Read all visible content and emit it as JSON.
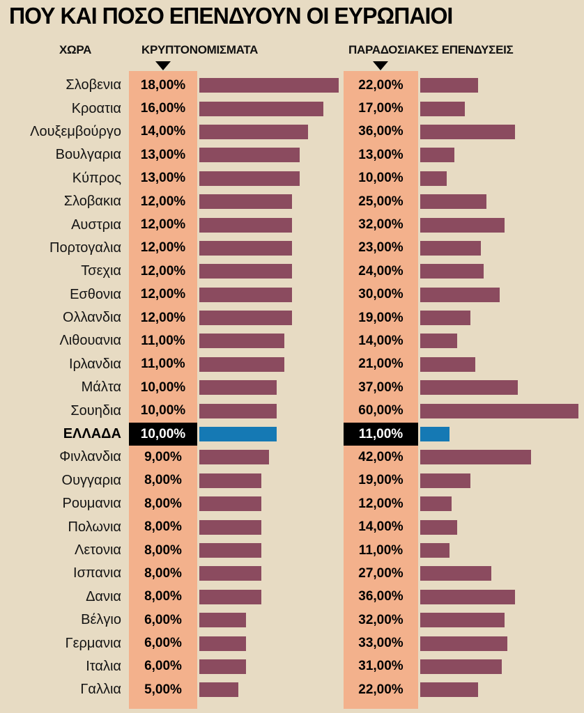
{
  "title": "ΠΟΥ ΚΑΙ ΠΟΣΟ ΕΠΕΝΔΥΟΥΝ ΟΙ ΕΥΡΩΠΑΙΟΙ",
  "headers": {
    "country": "ΧΩΡΑ",
    "crypto": "ΚΡΥΠΤΟΝΟΜΙΣΜΑΤΑ",
    "traditional": "ΠΑΡΑΔΟΣΙΑΚΕΣ ΕΠΕΝΔΥΣΕΙΣ"
  },
  "colors": {
    "background": "#e7dbc3",
    "column": "#f3b18c",
    "bar": "#8b4b5f",
    "highlight_bar": "#1579b4",
    "highlight_bg": "#000000",
    "highlight_text": "#ffffff"
  },
  "chart_data": {
    "type": "bar",
    "orientation": "horizontal",
    "title": "ΠΟΥ ΚΑΙ ΠΟΣΟ ΕΠΕΝΔΥΟΥΝ ΟΙ ΕΥΡΩΠΑΙΟΙ",
    "categories": [
      "Σλοβενια",
      "Κροατια",
      "Λουξεμβούργο",
      "Βουλγαρια",
      "Κύπρος",
      "Σλοβακια",
      "Αυστρια",
      "Πορτογαλια",
      "Τσεχια",
      "Εσθονια",
      "Ολλανδια",
      "Λιθουανια",
      "Ιρλανδια",
      "Μάλτα",
      "Σουηδια",
      "ΕΛΛΑΔΑ",
      "Φινλανδια",
      "Ουγγαρια",
      "Ρουμανια",
      "Πολωνια",
      "Λετονια",
      "Ισπανια",
      "Δανια",
      "Βέλγιο",
      "Γερμανια",
      "Ιταλια",
      "Γαλλια"
    ],
    "series": [
      {
        "name": "ΚΡΥΠΤΟΝΟΜΙΣΜΑΤΑ",
        "values": [
          18,
          16,
          14,
          13,
          13,
          12,
          12,
          12,
          12,
          12,
          12,
          11,
          11,
          10,
          10,
          10,
          9,
          8,
          8,
          8,
          8,
          8,
          8,
          6,
          6,
          6,
          5
        ],
        "labels": [
          "18,00%",
          "16,00%",
          "14,00%",
          "13,00%",
          "13,00%",
          "12,00%",
          "12,00%",
          "12,00%",
          "12,00%",
          "12,00%",
          "12,00%",
          "11,00%",
          "11,00%",
          "10,00%",
          "10,00%",
          "10,00%",
          "9,00%",
          "8,00%",
          "8,00%",
          "8,00%",
          "8,00%",
          "8,00%",
          "8,00%",
          "6,00%",
          "6,00%",
          "6,00%",
          "5,00%"
        ]
      },
      {
        "name": "ΠΑΡΑΔΟΣΙΑΚΕΣ ΕΠΕΝΔΥΣΕΙΣ",
        "values": [
          22,
          17,
          36,
          13,
          10,
          25,
          32,
          23,
          24,
          30,
          19,
          14,
          21,
          37,
          60,
          11,
          42,
          19,
          12,
          14,
          11,
          27,
          36,
          32,
          33,
          31,
          22
        ],
        "labels": [
          "22,00%",
          "17,00%",
          "36,00%",
          "13,00%",
          "10,00%",
          "25,00%",
          "32,00%",
          "23,00%",
          "24,00%",
          "30,00%",
          "19,00%",
          "14,00%",
          "21,00%",
          "37,00%",
          "60,00%",
          "11,00%",
          "42,00%",
          "19,00%",
          "12,00%",
          "14,00%",
          "11,00%",
          "27,00%",
          "36,00%",
          "32,00%",
          "33,00%",
          "31,00%",
          "22,00%"
        ],
        "labels_note": "values shown with comma decimals as in source"
      }
    ],
    "highlight_category": "ΕΛΛΑΔΑ",
    "xlim_crypto": [
      0,
      18
    ],
    "xlim_traditional": [
      0,
      60
    ],
    "value_format": "percent, two decimals, comma separator",
    "grid": false,
    "legend_position": "column headers with down-triangle markers"
  }
}
